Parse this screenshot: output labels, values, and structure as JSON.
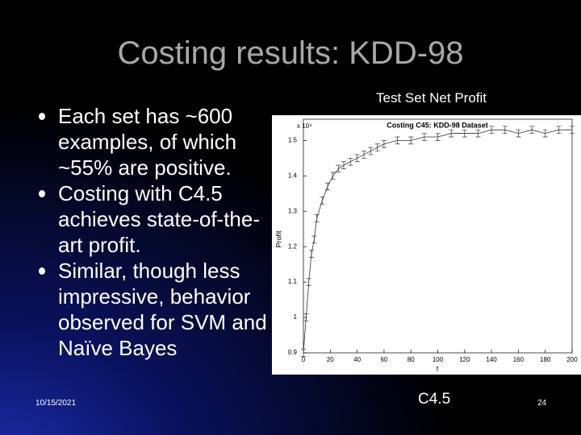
{
  "slide": {
    "title": "Costing results: KDD-98",
    "bullets": [
      "Each set has ~600 examples, of which ~55% are positive.",
      "Costing with C4.5 achieves state-of-the-art profit.",
      "Similar, though less impressive, behavior observed for SVM and Naïve Bayes"
    ],
    "figure_caption": "Test Set Net Profit",
    "figure_label": "C4.5",
    "date": "10/15/2021",
    "page": "24"
  },
  "chart_data": {
    "type": "line",
    "title": "Costing C45: KDD-98 Dataset",
    "xlabel": "t",
    "ylabel": "Profit",
    "y_multiplier": "x 10⁴",
    "x": [
      0,
      2,
      4,
      6,
      8,
      10,
      14,
      18,
      22,
      26,
      30,
      35,
      40,
      45,
      50,
      55,
      60,
      70,
      80,
      90,
      100,
      110,
      120,
      130,
      140,
      150,
      160,
      170,
      180,
      190,
      200
    ],
    "series": [
      {
        "color": "#333333",
        "values": [
          0.9,
          1.0,
          1.1,
          1.18,
          1.22,
          1.28,
          1.33,
          1.37,
          1.4,
          1.42,
          1.43,
          1.44,
          1.45,
          1.46,
          1.47,
          1.48,
          1.49,
          1.5,
          1.5,
          1.51,
          1.51,
          1.52,
          1.52,
          1.52,
          1.53,
          1.53,
          1.52,
          1.53,
          1.52,
          1.53,
          1.53
        ],
        "errors": [
          0.01,
          0.01,
          0.01,
          0.01,
          0.01,
          0.01,
          0.01,
          0.01,
          0.01,
          0.01,
          0.01,
          0.01,
          0.01,
          0.01,
          0.01,
          0.01,
          0.01,
          0.01,
          0.01,
          0.01,
          0.01,
          0.01,
          0.01,
          0.01,
          0.01,
          0.01,
          0.01,
          0.01,
          0.01,
          0.01,
          0.01
        ]
      }
    ],
    "xlim": [
      0,
      200
    ],
    "xticks": [
      0,
      20,
      40,
      60,
      80,
      100,
      120,
      140,
      160,
      180,
      200
    ],
    "ylim": [
      0.9,
      1.56
    ],
    "yticks": [
      0.9,
      1,
      1.1,
      1.2,
      1.3,
      1.4,
      1.5
    ]
  }
}
